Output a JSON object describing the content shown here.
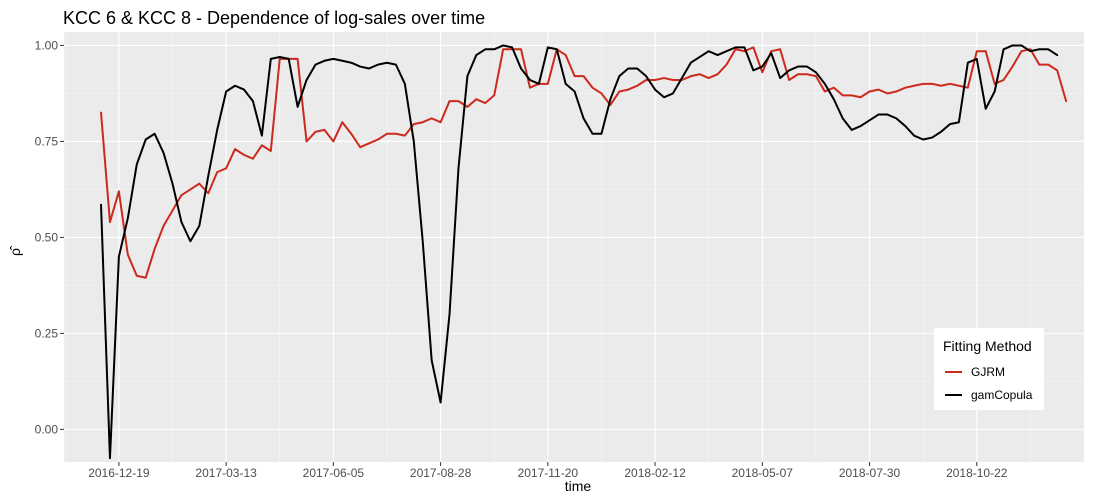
{
  "chart_data": {
    "type": "line",
    "title": "KCC 6 & KCC 8 - Dependence of log-sales over time",
    "xlabel": "time",
    "ylabel": "ρ̂",
    "x_tick_labels": [
      "2016-12-19",
      "2017-03-13",
      "2017-06-05",
      "2017-08-28",
      "2017-11-20",
      "2018-02-12",
      "2018-05-07",
      "2018-07-30",
      "2018-10-22"
    ],
    "y_ticks": [
      0.0,
      0.25,
      0.5,
      0.75,
      1.0
    ],
    "y_tick_labels": [
      "0.00",
      "0.25",
      "0.50",
      "0.75",
      "1.00"
    ],
    "ylim": [
      -0.085,
      1.035
    ],
    "xlim": [
      "2016-11-06",
      "2019-01-14"
    ],
    "grid": true,
    "legend": {
      "title": "Fitting Method",
      "position": "bottom-right"
    },
    "series": [
      {
        "name": "GJRM",
        "color": "#cc2a1c",
        "points": [
          [
            "2016-12-05",
            0.825
          ],
          [
            "2016-12-12",
            0.54
          ],
          [
            "2016-12-19",
            0.62
          ],
          [
            "2016-12-26",
            0.455
          ],
          [
            "2017-01-02",
            0.4
          ],
          [
            "2017-01-09",
            0.395
          ],
          [
            "2017-01-16",
            0.47
          ],
          [
            "2017-01-23",
            0.53
          ],
          [
            "2017-01-30",
            0.57
          ],
          [
            "2017-02-06",
            0.61
          ],
          [
            "2017-02-13",
            0.625
          ],
          [
            "2017-02-20",
            0.64
          ],
          [
            "2017-02-27",
            0.615
          ],
          [
            "2017-03-06",
            0.67
          ],
          [
            "2017-03-13",
            0.68
          ],
          [
            "2017-03-20",
            0.73
          ],
          [
            "2017-03-27",
            0.715
          ],
          [
            "2017-04-03",
            0.705
          ],
          [
            "2017-04-10",
            0.74
          ],
          [
            "2017-04-17",
            0.725
          ],
          [
            "2017-04-24",
            0.965
          ],
          [
            "2017-05-01",
            0.965
          ],
          [
            "2017-05-08",
            0.965
          ],
          [
            "2017-05-15",
            0.75
          ],
          [
            "2017-05-22",
            0.775
          ],
          [
            "2017-05-29",
            0.78
          ],
          [
            "2017-06-05",
            0.75
          ],
          [
            "2017-06-12",
            0.8
          ],
          [
            "2017-06-19",
            0.77
          ],
          [
            "2017-06-26",
            0.735
          ],
          [
            "2017-07-03",
            0.745
          ],
          [
            "2017-07-10",
            0.755
          ],
          [
            "2017-07-17",
            0.77
          ],
          [
            "2017-07-24",
            0.77
          ],
          [
            "2017-07-31",
            0.765
          ],
          [
            "2017-08-07",
            0.795
          ],
          [
            "2017-08-14",
            0.8
          ],
          [
            "2017-08-21",
            0.81
          ],
          [
            "2017-08-28",
            0.8
          ],
          [
            "2017-09-04",
            0.855
          ],
          [
            "2017-09-11",
            0.855
          ],
          [
            "2017-09-18",
            0.84
          ],
          [
            "2017-09-25",
            0.86
          ],
          [
            "2017-10-02",
            0.85
          ],
          [
            "2017-10-09",
            0.87
          ],
          [
            "2017-10-16",
            0.99
          ],
          [
            "2017-10-23",
            0.99
          ],
          [
            "2017-10-30",
            0.99
          ],
          [
            "2017-11-06",
            0.89
          ],
          [
            "2017-11-13",
            0.9
          ],
          [
            "2017-11-20",
            0.9
          ],
          [
            "2017-11-27",
            0.99
          ],
          [
            "2017-12-04",
            0.975
          ],
          [
            "2017-12-11",
            0.92
          ],
          [
            "2017-12-18",
            0.92
          ],
          [
            "2017-12-25",
            0.89
          ],
          [
            "2018-01-01",
            0.875
          ],
          [
            "2018-01-08",
            0.845
          ],
          [
            "2018-01-15",
            0.88
          ],
          [
            "2018-01-22",
            0.885
          ],
          [
            "2018-01-29",
            0.895
          ],
          [
            "2018-02-05",
            0.91
          ],
          [
            "2018-02-12",
            0.91
          ],
          [
            "2018-02-19",
            0.915
          ],
          [
            "2018-02-26",
            0.91
          ],
          [
            "2018-03-05",
            0.91
          ],
          [
            "2018-03-12",
            0.92
          ],
          [
            "2018-03-19",
            0.925
          ],
          [
            "2018-03-26",
            0.915
          ],
          [
            "2018-04-02",
            0.925
          ],
          [
            "2018-04-09",
            0.95
          ],
          [
            "2018-04-16",
            0.99
          ],
          [
            "2018-04-23",
            0.985
          ],
          [
            "2018-04-30",
            0.995
          ],
          [
            "2018-05-07",
            0.93
          ],
          [
            "2018-05-14",
            0.985
          ],
          [
            "2018-05-21",
            0.99
          ],
          [
            "2018-05-28",
            0.91
          ],
          [
            "2018-06-04",
            0.925
          ],
          [
            "2018-06-11",
            0.925
          ],
          [
            "2018-06-18",
            0.92
          ],
          [
            "2018-06-25",
            0.88
          ],
          [
            "2018-07-02",
            0.89
          ],
          [
            "2018-07-09",
            0.87
          ],
          [
            "2018-07-16",
            0.87
          ],
          [
            "2018-07-23",
            0.865
          ],
          [
            "2018-07-30",
            0.88
          ],
          [
            "2018-08-06",
            0.885
          ],
          [
            "2018-08-13",
            0.875
          ],
          [
            "2018-08-20",
            0.88
          ],
          [
            "2018-08-27",
            0.89
          ],
          [
            "2018-09-03",
            0.895
          ],
          [
            "2018-09-10",
            0.9
          ],
          [
            "2018-09-17",
            0.9
          ],
          [
            "2018-09-24",
            0.895
          ],
          [
            "2018-10-01",
            0.9
          ],
          [
            "2018-10-08",
            0.895
          ],
          [
            "2018-10-15",
            0.89
          ],
          [
            "2018-10-22",
            0.985
          ],
          [
            "2018-10-29",
            0.985
          ],
          [
            "2018-11-05",
            0.9
          ],
          [
            "2018-11-12",
            0.91
          ],
          [
            "2018-11-19",
            0.945
          ],
          [
            "2018-11-26",
            0.985
          ],
          [
            "2018-12-03",
            0.99
          ],
          [
            "2018-12-10",
            0.95
          ],
          [
            "2018-12-17",
            0.95
          ],
          [
            "2018-12-24",
            0.935
          ],
          [
            "2018-12-31",
            0.855
          ]
        ]
      },
      {
        "name": "gamCopula",
        "color": "#000000",
        "points": [
          [
            "2016-12-05",
            0.585
          ],
          [
            "2016-12-12",
            -0.075
          ],
          [
            "2016-12-19",
            0.45
          ],
          [
            "2016-12-26",
            0.55
          ],
          [
            "2017-01-02",
            0.69
          ],
          [
            "2017-01-09",
            0.755
          ],
          [
            "2017-01-16",
            0.77
          ],
          [
            "2017-01-23",
            0.72
          ],
          [
            "2017-01-30",
            0.64
          ],
          [
            "2017-02-06",
            0.54
          ],
          [
            "2017-02-13",
            0.49
          ],
          [
            "2017-02-20",
            0.53
          ],
          [
            "2017-02-27",
            0.66
          ],
          [
            "2017-03-06",
            0.78
          ],
          [
            "2017-03-13",
            0.88
          ],
          [
            "2017-03-20",
            0.895
          ],
          [
            "2017-03-27",
            0.885
          ],
          [
            "2017-04-03",
            0.855
          ],
          [
            "2017-04-10",
            0.765
          ],
          [
            "2017-04-17",
            0.965
          ],
          [
            "2017-04-24",
            0.97
          ],
          [
            "2017-05-01",
            0.965
          ],
          [
            "2017-05-08",
            0.84
          ],
          [
            "2017-05-15",
            0.91
          ],
          [
            "2017-05-22",
            0.95
          ],
          [
            "2017-05-29",
            0.96
          ],
          [
            "2017-06-05",
            0.965
          ],
          [
            "2017-06-12",
            0.96
          ],
          [
            "2017-06-19",
            0.955
          ],
          [
            "2017-06-26",
            0.945
          ],
          [
            "2017-07-03",
            0.94
          ],
          [
            "2017-07-10",
            0.95
          ],
          [
            "2017-07-17",
            0.955
          ],
          [
            "2017-07-24",
            0.95
          ],
          [
            "2017-07-31",
            0.9
          ],
          [
            "2017-08-07",
            0.75
          ],
          [
            "2017-08-14",
            0.49
          ],
          [
            "2017-08-21",
            0.18
          ],
          [
            "2017-08-28",
            0.07
          ],
          [
            "2017-09-04",
            0.3
          ],
          [
            "2017-09-11",
            0.68
          ],
          [
            "2017-09-18",
            0.92
          ],
          [
            "2017-09-25",
            0.975
          ],
          [
            "2017-10-02",
            0.99
          ],
          [
            "2017-10-09",
            0.99
          ],
          [
            "2017-10-16",
            1.0
          ],
          [
            "2017-10-23",
            0.995
          ],
          [
            "2017-10-30",
            0.94
          ],
          [
            "2017-11-06",
            0.91
          ],
          [
            "2017-11-13",
            0.9
          ],
          [
            "2017-11-20",
            0.995
          ],
          [
            "2017-11-27",
            0.99
          ],
          [
            "2017-12-04",
            0.9
          ],
          [
            "2017-12-11",
            0.88
          ],
          [
            "2017-12-18",
            0.81
          ],
          [
            "2017-12-25",
            0.77
          ],
          [
            "2018-01-01",
            0.77
          ],
          [
            "2018-01-08",
            0.86
          ],
          [
            "2018-01-15",
            0.92
          ],
          [
            "2018-01-22",
            0.94
          ],
          [
            "2018-01-29",
            0.94
          ],
          [
            "2018-02-05",
            0.92
          ],
          [
            "2018-02-12",
            0.885
          ],
          [
            "2018-02-19",
            0.865
          ],
          [
            "2018-02-26",
            0.875
          ],
          [
            "2018-03-05",
            0.915
          ],
          [
            "2018-03-12",
            0.955
          ],
          [
            "2018-03-19",
            0.97
          ],
          [
            "2018-03-26",
            0.985
          ],
          [
            "2018-04-02",
            0.975
          ],
          [
            "2018-04-09",
            0.985
          ],
          [
            "2018-04-16",
            0.995
          ],
          [
            "2018-04-23",
            0.995
          ],
          [
            "2018-04-30",
            0.935
          ],
          [
            "2018-05-07",
            0.945
          ],
          [
            "2018-05-14",
            0.98
          ],
          [
            "2018-05-21",
            0.915
          ],
          [
            "2018-05-28",
            0.935
          ],
          [
            "2018-06-04",
            0.945
          ],
          [
            "2018-06-11",
            0.945
          ],
          [
            "2018-06-18",
            0.93
          ],
          [
            "2018-06-25",
            0.9
          ],
          [
            "2018-07-02",
            0.86
          ],
          [
            "2018-07-09",
            0.81
          ],
          [
            "2018-07-16",
            0.78
          ],
          [
            "2018-07-23",
            0.79
          ],
          [
            "2018-07-30",
            0.805
          ],
          [
            "2018-08-06",
            0.82
          ],
          [
            "2018-08-13",
            0.82
          ],
          [
            "2018-08-20",
            0.81
          ],
          [
            "2018-08-27",
            0.79
          ],
          [
            "2018-09-03",
            0.765
          ],
          [
            "2018-09-10",
            0.755
          ],
          [
            "2018-09-17",
            0.76
          ],
          [
            "2018-09-24",
            0.775
          ],
          [
            "2018-10-01",
            0.795
          ],
          [
            "2018-10-08",
            0.8
          ],
          [
            "2018-10-15",
            0.955
          ],
          [
            "2018-10-22",
            0.965
          ],
          [
            "2018-10-29",
            0.835
          ],
          [
            "2018-11-05",
            0.88
          ],
          [
            "2018-11-12",
            0.99
          ],
          [
            "2018-11-19",
            1.0
          ],
          [
            "2018-11-26",
            1.0
          ],
          [
            "2018-12-03",
            0.985
          ],
          [
            "2018-12-10",
            0.99
          ],
          [
            "2018-12-17",
            0.99
          ],
          [
            "2018-12-24",
            0.975
          ]
        ]
      }
    ]
  }
}
